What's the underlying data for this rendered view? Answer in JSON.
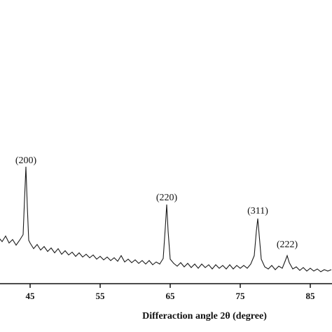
{
  "chart_data": {
    "type": "line",
    "x_label": "Differaction angle 2θ (degree)",
    "color": "#1a1a1a",
    "xlim": [
      40.7,
      88.1
    ],
    "xticks": [
      45,
      55,
      65,
      75,
      85
    ],
    "ylim": [
      0,
      400
    ],
    "annotations": [
      {
        "text": "(200)",
        "x": 44.4,
        "y": 175
      },
      {
        "text": "(220)",
        "x": 64.5,
        "y": 122
      },
      {
        "text": "(311)",
        "x": 77.5,
        "y": 103
      },
      {
        "text": "(222)",
        "x": 81.7,
        "y": 55
      }
    ],
    "x": [
      40.5,
      41,
      41.5,
      42,
      42.5,
      43,
      43.5,
      44,
      44.2,
      44.4,
      44.6,
      44.8,
      45,
      45.5,
      46,
      46.5,
      47,
      47.5,
      48,
      48.5,
      49,
      49.5,
      50,
      50.5,
      51,
      51.5,
      52,
      52.5,
      53,
      53.5,
      54,
      54.5,
      55,
      55.5,
      56,
      56.5,
      57,
      57.5,
      58,
      58.5,
      59,
      59.5,
      60,
      60.5,
      61,
      61.5,
      62,
      62.5,
      63,
      63.5,
      64,
      64.3,
      64.5,
      64.7,
      65,
      65.5,
      66,
      66.5,
      67,
      67.5,
      68,
      68.5,
      69,
      69.5,
      70,
      70.5,
      71,
      71.5,
      72,
      72.5,
      73,
      73.5,
      74,
      74.5,
      75,
      75.5,
      76,
      76.5,
      77,
      77.3,
      77.5,
      77.7,
      78,
      78.5,
      79,
      79.5,
      80,
      80.5,
      81,
      81.4,
      81.7,
      82,
      82.5,
      83,
      83.5,
      84,
      84.5,
      85,
      85.5,
      86,
      86.5,
      87,
      87.5,
      88
    ],
    "series": [
      {
        "values": [
          66,
          60,
          68,
          58,
          63,
          55,
          62,
          70,
          120,
          167,
          110,
          62,
          58,
          50,
          56,
          48,
          53,
          46,
          51,
          44,
          50,
          42,
          47,
          41,
          45,
          39,
          44,
          38,
          42,
          37,
          41,
          35,
          39,
          34,
          38,
          33,
          37,
          32,
          40,
          31,
          35,
          30,
          34,
          29,
          33,
          28,
          33,
          27,
          31,
          28,
          36,
          80,
          113,
          75,
          35,
          29,
          25,
          30,
          24,
          29,
          23,
          28,
          22,
          28,
          23,
          27,
          21,
          27,
          22,
          26,
          21,
          27,
          21,
          26,
          22,
          26,
          22,
          28,
          40,
          75,
          93,
          70,
          35,
          24,
          21,
          26,
          20,
          25,
          22,
          32,
          40,
          30,
          21,
          24,
          19,
          23,
          18,
          22,
          18,
          21,
          17,
          20,
          18,
          20
        ]
      }
    ]
  }
}
